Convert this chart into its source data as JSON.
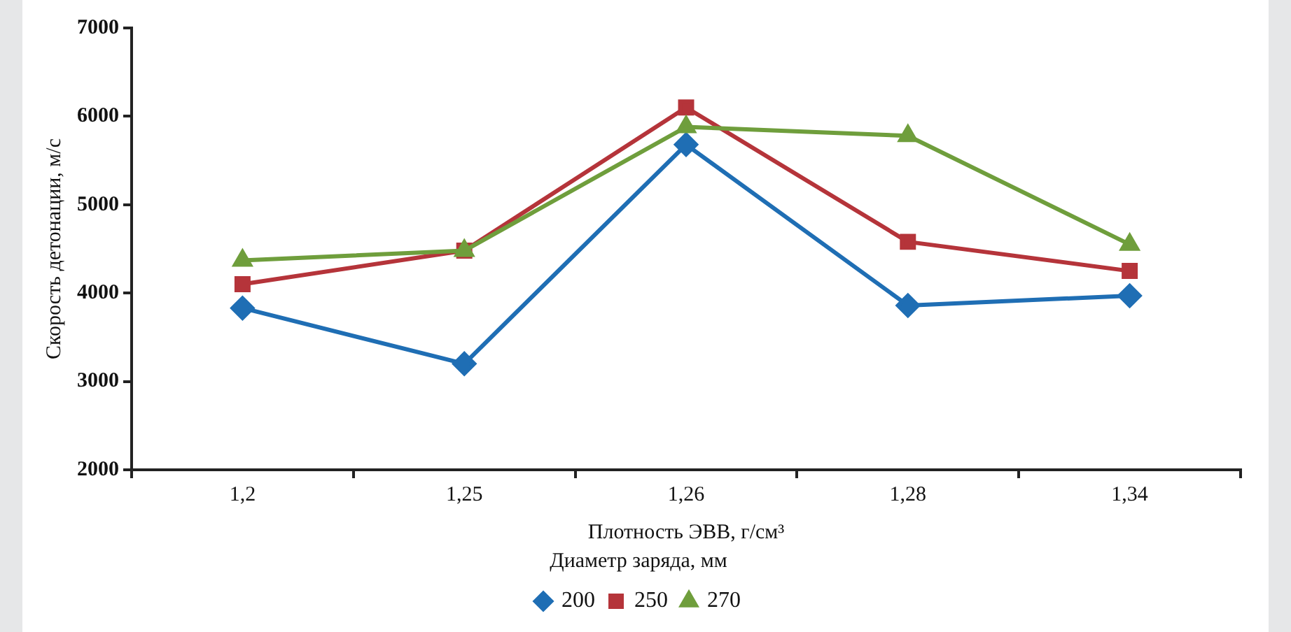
{
  "chart_data": {
    "type": "line",
    "xlabel": "Плотность ЭВВ, г/см³",
    "ylabel": "Скорость детонации, м/с",
    "legend_title": "Диаметр заряда, мм",
    "categories": [
      "1,2",
      "1,25",
      "1,26",
      "1,28",
      "1,34"
    ],
    "series": [
      {
        "name": "200",
        "color": "#1f6eb4",
        "marker": "diamond",
        "values": [
          3830,
          3200,
          5680,
          3860,
          3970
        ]
      },
      {
        "name": "250",
        "color": "#b5343a",
        "marker": "square",
        "values": [
          4100,
          4480,
          6100,
          4580,
          4250
        ]
      },
      {
        "name": "270",
        "color": "#6f9e3c",
        "marker": "triangle",
        "values": [
          4370,
          4480,
          5880,
          5780,
          4550
        ]
      }
    ],
    "ylim": [
      2000,
      7000
    ],
    "yticks": [
      2000,
      3000,
      4000,
      5000,
      6000,
      7000
    ],
    "grid": false,
    "legend": "bottom",
    "line_style": "solid"
  }
}
